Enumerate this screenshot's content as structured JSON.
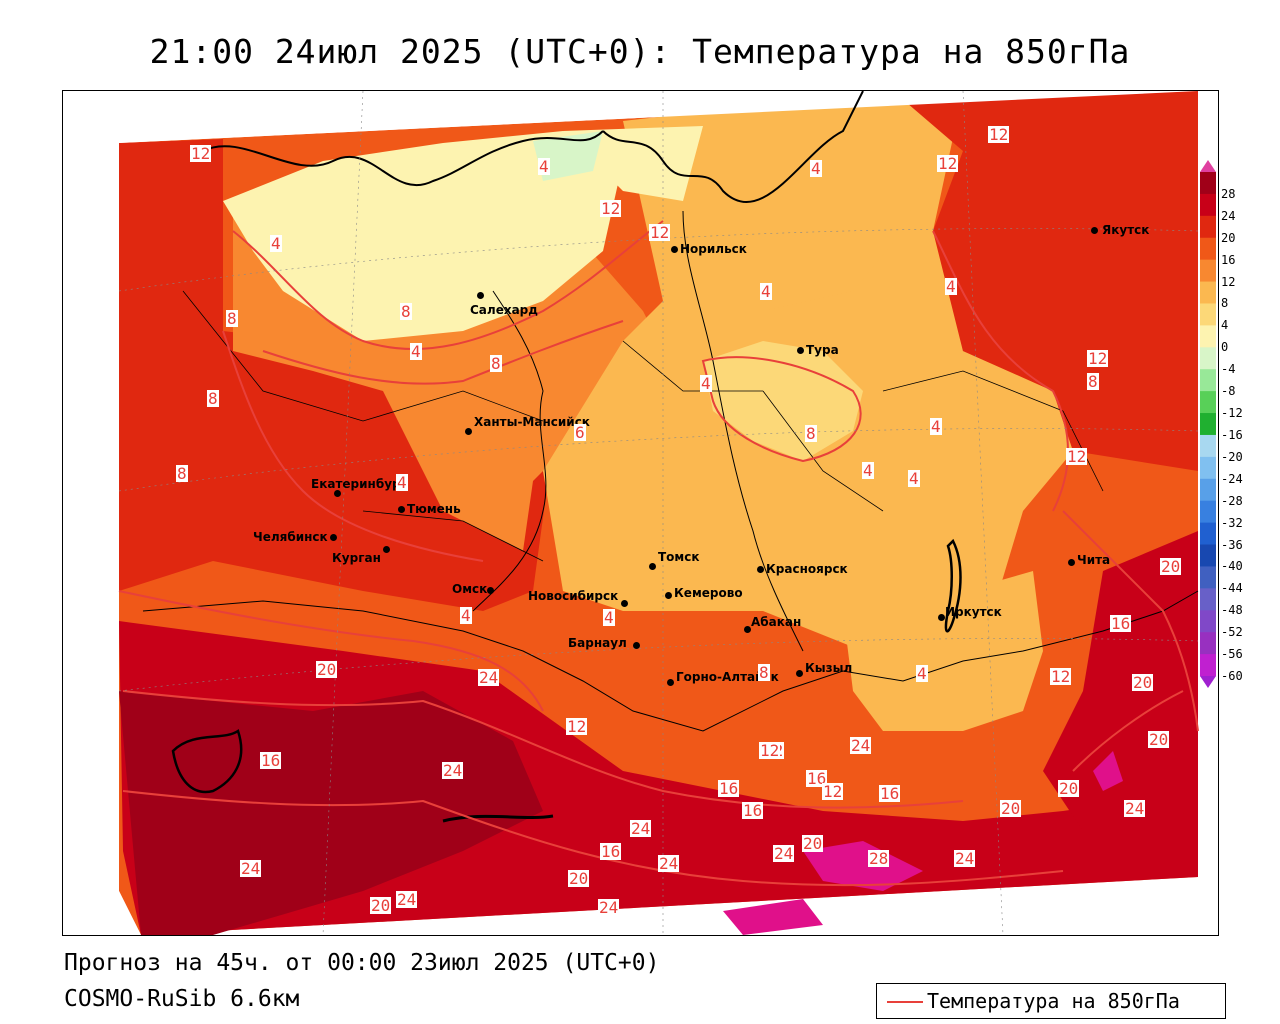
{
  "title": "21:00 24июл 2025 (UTC+0): Температура на 850гПа",
  "forecast_line": "Прогноз на 45ч. от 00:00 23июл 2025 (UTC+0)",
  "model_line": "COSMO-RuSib 6.6км",
  "legend": {
    "label": "Температура на 850гПа",
    "line_color": "#e8403a"
  },
  "colorbar": {
    "ticks": [
      "28",
      "24",
      "20",
      "16",
      "12",
      "8",
      "4",
      "0",
      "-4",
      "-8",
      "-12",
      "-16",
      "-20",
      "-24",
      "-28",
      "-32",
      "-36",
      "-40",
      "-44",
      "-48",
      "-52",
      "-56",
      "-60"
    ],
    "colors": [
      "#a00018",
      "#c80018",
      "#e02810",
      "#f05818",
      "#f88830",
      "#fbb850",
      "#fcd878",
      "#fdf3b0",
      "#d8f5c8",
      "#98e898",
      "#58d058",
      "#20b030",
      "#a8d8f0",
      "#80c0f0",
      "#58a0e8",
      "#3880e0",
      "#2060d0",
      "#1848b0",
      "#4060c0",
      "#6860c8",
      "#8048c8",
      "#9830c0",
      "#c020d0"
    ],
    "top_cap_color": "#e040a0",
    "bottom_cap_color": "#a020d0"
  },
  "cities": [
    {
      "name": "Норильск"
    },
    {
      "name": "Якутск"
    },
    {
      "name": "Салехард"
    },
    {
      "name": "Тура"
    },
    {
      "name": "Ханты-Мансийск"
    },
    {
      "name": "Екатеринбург"
    },
    {
      "name": "Тюмень"
    },
    {
      "name": "Челябинск"
    },
    {
      "name": "Курган"
    },
    {
      "name": "Омск"
    },
    {
      "name": "Томск"
    },
    {
      "name": "Красноярск"
    },
    {
      "name": "Новосибирск"
    },
    {
      "name": "Кемерово"
    },
    {
      "name": "Абакан"
    },
    {
      "name": "Иркутск"
    },
    {
      "name": "Чита"
    },
    {
      "name": "Барнаул"
    },
    {
      "name": "Горно-Алтайск"
    },
    {
      "name": "Кызыл"
    }
  ],
  "isotherm_labels": [
    "12",
    "4",
    "4",
    "12",
    "12",
    "4",
    "4",
    "4",
    "8",
    "8",
    "4",
    "8",
    "4",
    "8",
    "12",
    "8",
    "6",
    "4",
    "4",
    "4",
    "4",
    "12",
    "12",
    "12",
    "8",
    "8",
    "4",
    "4",
    "4",
    "20",
    "16",
    "16",
    "20",
    "12",
    "12",
    "8",
    "24",
    "20",
    "24",
    "20",
    "24",
    "12",
    "16",
    "12",
    "16",
    "16",
    "16",
    "12",
    "20",
    "24",
    "20",
    "16",
    "20",
    "24",
    "24",
    "24",
    "28",
    "24",
    "20",
    "24",
    "20",
    "24",
    "24"
  ]
}
